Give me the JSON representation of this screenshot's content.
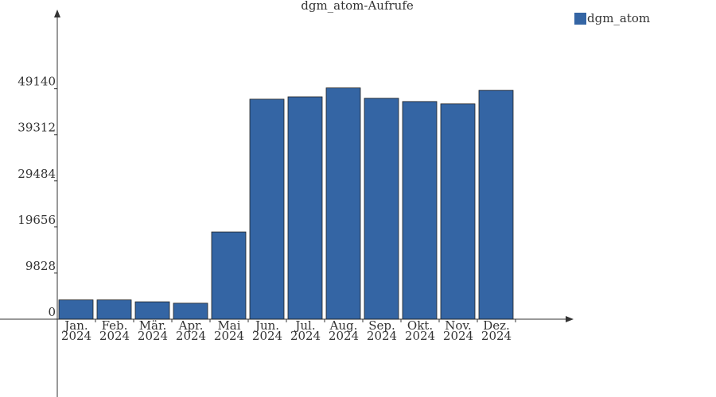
{
  "chart_data": {
    "type": "bar",
    "title": "dgm_atom-Aufrufe",
    "categories": [
      "Jan.\n2024",
      "Feb.\n2024",
      "Mär.\n2024",
      "Apr.\n2024",
      "Mai\n2024",
      "Jun.\n2024",
      "Jul.\n2024",
      "Aug.\n2024",
      "Sep.\n2024",
      "Okt.\n2024",
      "Nov.\n2024",
      "Dez.\n2024"
    ],
    "series": [
      {
        "name": "dgm_atom",
        "color": "#3465a4",
        "values": [
          4100,
          4100,
          3700,
          3400,
          18600,
          46900,
          47400,
          49300,
          47100,
          46400,
          45900,
          48800
        ]
      }
    ],
    "ylim": [
      -16600,
      65000
    ],
    "yticks": [
      0,
      9828,
      19656,
      29484,
      39312,
      49140
    ],
    "legend": "top-right"
  }
}
